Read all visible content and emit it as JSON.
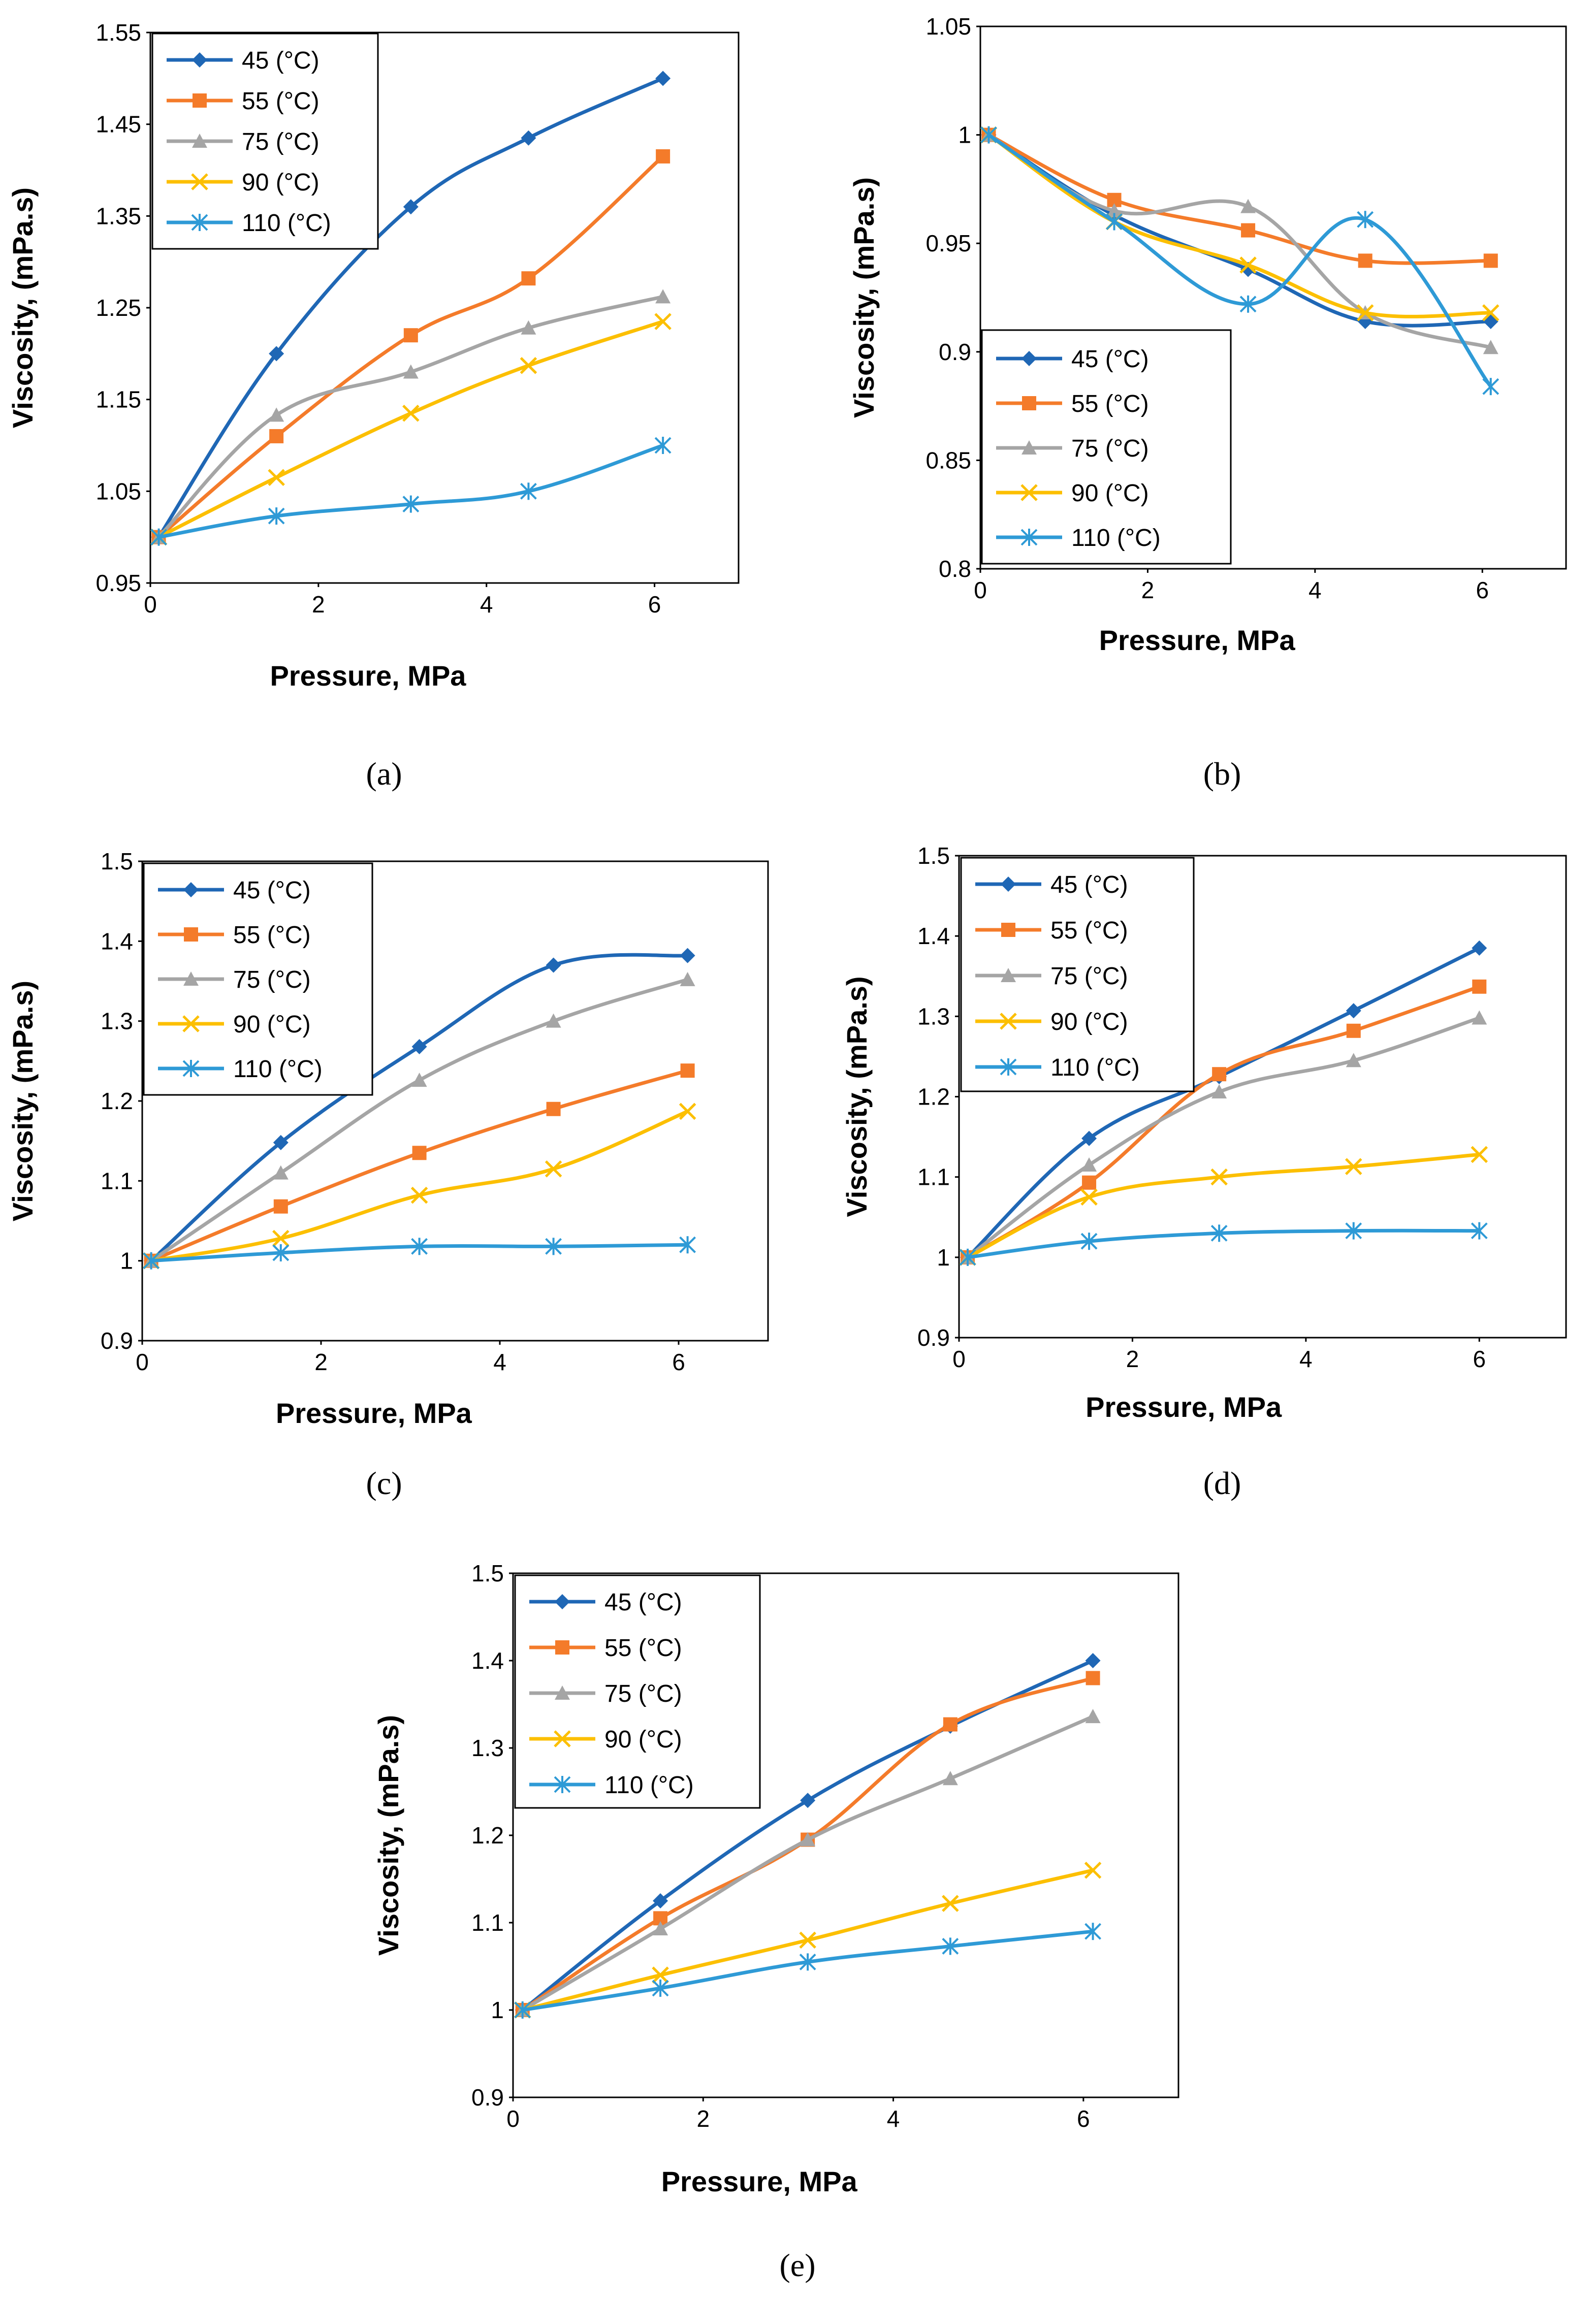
{
  "figure": {
    "series_names": [
      "45 (°C)",
      "55 (°C)",
      "75 (°C)",
      "90 (°C)",
      "110 (°C)"
    ],
    "series_colors": [
      "#1f67b5",
      "#f47b2a",
      "#a5a5a5",
      "#fcbf00",
      "#2e9ad6"
    ],
    "series_markers": [
      "diamond",
      "square",
      "triangle",
      "x",
      "star"
    ]
  },
  "chart_data": [
    {
      "type": "line",
      "caption": "(a)",
      "xlabel": "Pressure, MPa",
      "ylabel": "Viscosity, (mPa.s)",
      "xlim": [
        0,
        7
      ],
      "xticks": [
        "0",
        "2",
        "4",
        "6"
      ],
      "ylim": [
        0.95,
        1.55
      ],
      "yticks": [
        "0.95",
        "1.05",
        "1.15",
        "1.25",
        "1.35",
        "1.45",
        "1.55"
      ],
      "legend_position": "top-left",
      "x": [
        0.1,
        1.5,
        3.1,
        4.5,
        6.1
      ],
      "series": [
        {
          "name": "45 (°C)",
          "values": [
            1.0,
            1.2,
            1.36,
            1.435,
            1.5
          ]
        },
        {
          "name": "55 (°C)",
          "values": [
            1.0,
            1.11,
            1.22,
            1.282,
            1.415
          ]
        },
        {
          "name": "75 (°C)",
          "values": [
            1.0,
            1.133,
            1.18,
            1.228,
            1.262
          ]
        },
        {
          "name": "90 (°C)",
          "values": [
            1.0,
            1.065,
            1.135,
            1.187,
            1.235
          ]
        },
        {
          "name": "110 (°C)",
          "values": [
            1.0,
            1.023,
            1.036,
            1.05,
            1.1
          ]
        }
      ]
    },
    {
      "type": "line",
      "caption": "(b)",
      "xlabel": "Pressure, MPa",
      "ylabel": "Viscosity, (mPa.s)",
      "xlim": [
        0,
        7
      ],
      "xticks": [
        "0",
        "2",
        "4",
        "6"
      ],
      "ylim": [
        0.8,
        1.05
      ],
      "yticks": [
        "0.8",
        "0.85",
        "0.9",
        "0.95",
        "1",
        "1.05"
      ],
      "legend_position": "bottom-left",
      "x": [
        0.1,
        1.6,
        3.2,
        4.6,
        6.1
      ],
      "series": [
        {
          "name": "45 (°C)",
          "values": [
            1.0,
            0.963,
            0.938,
            0.914,
            0.914
          ]
        },
        {
          "name": "55 (°C)",
          "values": [
            1.0,
            0.97,
            0.956,
            0.942,
            0.942
          ]
        },
        {
          "name": "75 (°C)",
          "values": [
            1.0,
            0.965,
            0.967,
            0.918,
            0.902
          ]
        },
        {
          "name": "90 (°C)",
          "values": [
            1.0,
            0.96,
            0.94,
            0.918,
            0.918
          ]
        },
        {
          "name": "110 (°C)",
          "values": [
            1.0,
            0.96,
            0.922,
            0.961,
            0.884
          ]
        }
      ]
    },
    {
      "type": "line",
      "caption": "(c)",
      "xlabel": "Pressure, MPa",
      "ylabel": "Viscosity, (mPa.s)",
      "xlim": [
        0,
        7
      ],
      "xticks": [
        "0",
        "2",
        "4",
        "6"
      ],
      "ylim": [
        0.9,
        1.5
      ],
      "yticks": [
        "0.9",
        "1",
        "1.1",
        "1.2",
        "1.3",
        "1.4",
        "1.5"
      ],
      "legend_position": "top-left",
      "x": [
        0.1,
        1.55,
        3.1,
        4.6,
        6.1
      ],
      "series": [
        {
          "name": "45 (°C)",
          "values": [
            1.0,
            1.148,
            1.268,
            1.37,
            1.382
          ]
        },
        {
          "name": "55 (°C)",
          "values": [
            1.0,
            1.068,
            1.135,
            1.19,
            1.238
          ]
        },
        {
          "name": "75 (°C)",
          "values": [
            1.0,
            1.11,
            1.226,
            1.3,
            1.352
          ]
        },
        {
          "name": "90 (°C)",
          "values": [
            1.0,
            1.028,
            1.082,
            1.115,
            1.187
          ]
        },
        {
          "name": "110 (°C)",
          "values": [
            1.0,
            1.01,
            1.018,
            1.018,
            1.02
          ]
        }
      ]
    },
    {
      "type": "line",
      "caption": "(d)",
      "xlabel": "Pressure, MPa",
      "ylabel": "Viscosity, (mPa.s)",
      "xlim": [
        0,
        7
      ],
      "xticks": [
        "0",
        "2",
        "4",
        "6"
      ],
      "ylim": [
        0.9,
        1.5
      ],
      "yticks": [
        "0.9",
        "1",
        "1.1",
        "1.2",
        "1.3",
        "1.4",
        "1.5"
      ],
      "legend_position": "top-left",
      "x": [
        0.1,
        1.5,
        3.0,
        4.55,
        6.0
      ],
      "series": [
        {
          "name": "45 (°C)",
          "values": [
            1.0,
            1.148,
            1.225,
            1.307,
            1.385
          ]
        },
        {
          "name": "55 (°C)",
          "values": [
            1.0,
            1.093,
            1.228,
            1.282,
            1.337
          ]
        },
        {
          "name": "75 (°C)",
          "values": [
            1.0,
            1.115,
            1.206,
            1.245,
            1.298
          ]
        },
        {
          "name": "90 (°C)",
          "values": [
            1.0,
            1.075,
            1.1,
            1.113,
            1.128
          ]
        },
        {
          "name": "110 (°C)",
          "values": [
            1.0,
            1.02,
            1.03,
            1.033,
            1.033
          ]
        }
      ]
    },
    {
      "type": "line",
      "caption": "(e)",
      "xlabel": "Pressure, MPa",
      "ylabel": "Viscosity, (mPa.s)",
      "xlim": [
        0,
        7
      ],
      "xticks": [
        "0",
        "2",
        "4",
        "6"
      ],
      "ylim": [
        0.9,
        1.5
      ],
      "yticks": [
        "0.9",
        "1",
        "1.1",
        "1.2",
        "1.3",
        "1.4",
        "1.5"
      ],
      "legend_position": "top-left",
      "x": [
        0.1,
        1.55,
        3.1,
        4.6,
        6.1
      ],
      "series": [
        {
          "name": "45 (°C)",
          "values": [
            1.0,
            1.125,
            1.24,
            1.325,
            1.4
          ]
        },
        {
          "name": "55 (°C)",
          "values": [
            1.0,
            1.105,
            1.195,
            1.327,
            1.38
          ]
        },
        {
          "name": "75 (°C)",
          "values": [
            1.0,
            1.093,
            1.195,
            1.265,
            1.336
          ]
        },
        {
          "name": "90 (°C)",
          "values": [
            1.0,
            1.04,
            1.08,
            1.122,
            1.16
          ]
        },
        {
          "name": "110 (°C)",
          "values": [
            1.0,
            1.025,
            1.055,
            1.073,
            1.09
          ]
        }
      ]
    }
  ]
}
